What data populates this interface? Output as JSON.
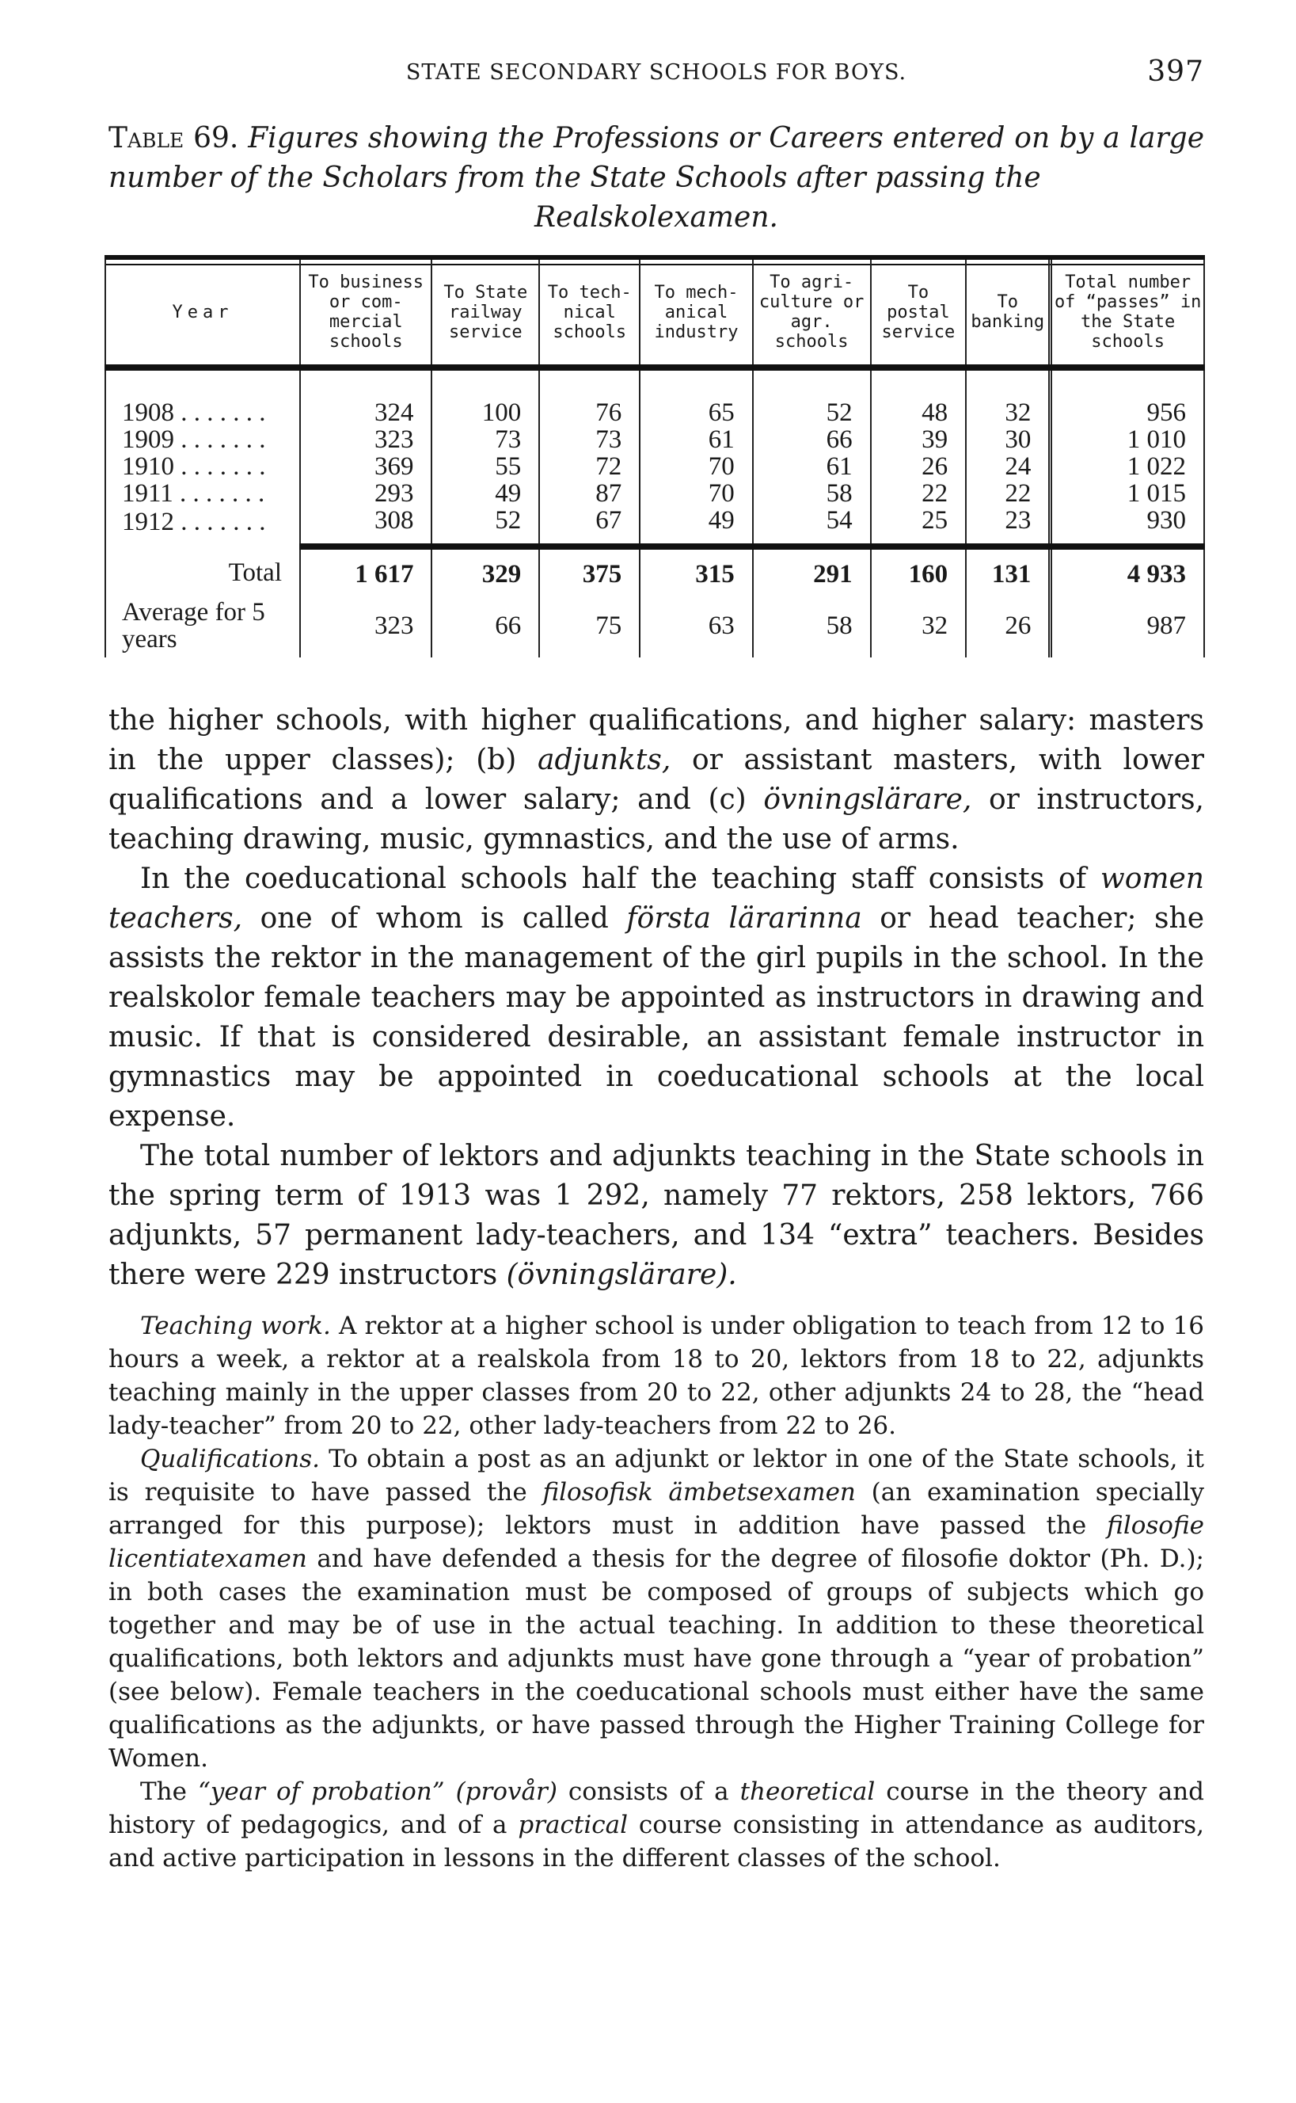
{
  "header": {
    "running_title": "STATE SECONDARY SCHOOLS FOR BOYS.",
    "page_number": "397"
  },
  "caption": {
    "label": "Table 69.",
    "text": "Figures showing the Professions or Careers entered on by a large number of the Scholars from the State Schools after passing the",
    "last": "Realskolexamen."
  },
  "table": {
    "headers": [
      "Year",
      "To business or com­mercial schools",
      "To State railway service",
      "To tech­nical schools",
      "To mech­anical industry",
      "To agri­culture or agr. schools",
      "To postal service",
      "To banking",
      "Total number of “passes” in the State schools"
    ],
    "rows": [
      {
        "year": "1908 . . . . . . .",
        "values": [
          "324",
          "100",
          "76",
          "65",
          "52",
          "48",
          "32",
          "956"
        ]
      },
      {
        "year": "1909 . . . . . . .",
        "values": [
          "323",
          "73",
          "73",
          "61",
          "66",
          "39",
          "30",
          "1 010"
        ]
      },
      {
        "year": "1910 . . . . . . .",
        "values": [
          "369",
          "55",
          "72",
          "70",
          "61",
          "26",
          "24",
          "1 022"
        ]
      },
      {
        "year": "1911 . . . . . . .",
        "values": [
          "293",
          "49",
          "87",
          "70",
          "58",
          "22",
          "22",
          "1 015"
        ]
      },
      {
        "year": "1912 . . . . . . .",
        "values": [
          "308",
          "52",
          "67",
          "49",
          "54",
          "25",
          "23",
          "930"
        ]
      }
    ],
    "total": {
      "label": "Total",
      "values": [
        "1 617",
        "329",
        "375",
        "315",
        "291",
        "160",
        "131",
        "4 933"
      ]
    },
    "average": {
      "label": "Average for 5 years",
      "values": [
        "323",
        "66",
        "75",
        "63",
        "58",
        "32",
        "26",
        "987"
      ]
    }
  },
  "body": [
    {
      "indent": false,
      "segments": [
        {
          "t": "the higher schools, with higher qualifications, and higher salary: masters in the upper classes); (b) "
        },
        {
          "t": "adjunkts,",
          "i": true
        },
        {
          "t": " or assistant masters, with lower qualifications and a lower salary; and (c) "
        },
        {
          "t": "övningslärare,",
          "i": true
        },
        {
          "t": " or instructors, teaching drawing, music, gymnastics, and the use of arms."
        }
      ]
    },
    {
      "indent": true,
      "segments": [
        {
          "t": "In the coeducational schools half the teaching staff consists of "
        },
        {
          "t": "women teachers,",
          "i": true
        },
        {
          "t": " one of whom is called "
        },
        {
          "t": "första lärarinna",
          "i": true
        },
        {
          "t": " or head teacher; she assists the rektor in the management of the girl pupils in the school. In the realskolor female teachers may be appointed as instructors in drawing and music. If that is considered desirable, an assistant female instructor in gymnastics may be appointed in coeducational schools at the local expense."
        }
      ]
    },
    {
      "indent": true,
      "segments": [
        {
          "t": "The total number of lektors and adjunkts teaching in the State schools in the spring term of 1913 was 1 292, namely 77 rektors, 258 lektors, 766 adjunkts, 57 permanent lady-teachers, and 134 “extra” teachers. Besides there were 229 instructors "
        },
        {
          "t": "(övningslärare).",
          "i": true
        }
      ]
    }
  ],
  "small": [
    {
      "segments": [
        {
          "t": "Teaching work.",
          "i": true
        },
        {
          "t": " A rektor at a higher school is under obligation to teach from 12 to 16 hours a week, a rektor at a realskola from 18 to 20, lektors from 18 to 22, adjunkts teaching mainly in the upper classes from 20 to 22, other adjunkts 24 to 28, the “head lady-teacher” from 20 to 22, other lady-teachers from 22 to 26."
        }
      ]
    },
    {
      "segments": [
        {
          "t": "Qualifications.",
          "i": true
        },
        {
          "t": " To obtain a post as an adjunkt or lektor in one of the State schools, it is requisite to have passed the "
        },
        {
          "t": "filosofisk ämbetsexamen",
          "i": true
        },
        {
          "t": " (an examination specially arranged for this purpose); lektors must in addition have passed the "
        },
        {
          "t": "filosofie licentiatexamen",
          "i": true
        },
        {
          "t": " and have defended a thesis for the degree of filosofie doktor (Ph. D.); in both cases the examination must be composed of groups of subjects which go together and may be of use in the actual teaching. In addition to these theoretical qualifications, both lektors and adjunkts must have gone through a “year of probation” (see below). Female teachers in the coeducational schools must either have the same qualifications as the adjunkts, or have passed through the Higher Training College for Women."
        }
      ]
    },
    {
      "segments": [
        {
          "t": "The "
        },
        {
          "t": "“year of probation” (provår)",
          "i": true
        },
        {
          "t": " consists of a "
        },
        {
          "t": "theoretical",
          "i": true
        },
        {
          "t": " course in the theory and history of pedagogics, and of a "
        },
        {
          "t": "practical",
          "i": true
        },
        {
          "t": " course consisting in attendance as auditors, and active participation in lessons in the different classes of the school."
        }
      ]
    }
  ]
}
